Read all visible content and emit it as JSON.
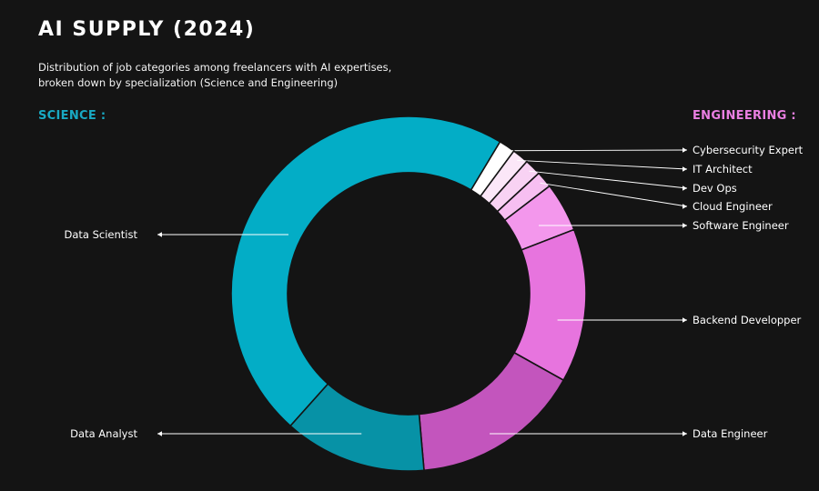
{
  "title": "AI SUPPLY (2024)",
  "subtitle": "Distribution of job categories among freelancers with AI expertises, broken down by specialization (Science and Engineering)",
  "groups": {
    "science": {
      "label": "SCIENCE :",
      "color": "#19a9c3"
    },
    "engineering": {
      "label": "ENGINEERING :",
      "color": "#ea7fe2"
    }
  },
  "chart_data": {
    "type": "pie",
    "variant": "donut",
    "title": "AI SUPPLY (2024)",
    "unit": "percent",
    "slices": [
      {
        "label": "Cybersecurity  Expert",
        "group": "Engineering",
        "value": 1.5,
        "color": "#ffffff"
      },
      {
        "label": "IT Architect",
        "group": "Engineering",
        "value": 1.5,
        "color": "#fbe7f8"
      },
      {
        "label": "Dev Ops",
        "group": "Engineering",
        "value": 1.5,
        "color": "#f8d2f3"
      },
      {
        "label": "Cloud Engineer",
        "group": "Engineering",
        "value": 1.5,
        "color": "#f7bff1"
      },
      {
        "label": "Software Engineer",
        "group": "Engineering",
        "value": 4.5,
        "color": "#f397ec"
      },
      {
        "label": "Backend Developper",
        "group": "Engineering",
        "value": 14,
        "color": "#e774de"
      },
      {
        "label": "Data Engineer",
        "group": "Engineering",
        "value": 15.5,
        "color": "#c355bd"
      },
      {
        "label": "Data Analyst",
        "group": "Science",
        "value": 13,
        "color": "#0792a6"
      },
      {
        "label": "Data Scientist",
        "group": "Science",
        "value": 47,
        "color": "#03adc6"
      }
    ]
  }
}
